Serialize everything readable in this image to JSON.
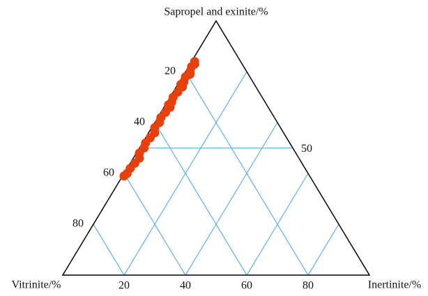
{
  "chart_data": {
    "type": "ternary",
    "top_label": "Sapropel and exinite/%",
    "left_label": "Vitrinite/%",
    "right_label": "Inertinite/%",
    "bottom_ticks": [
      20,
      40,
      60,
      80
    ],
    "left_ticks": [
      20,
      40,
      60,
      80
    ],
    "right_ticks": [
      50
    ],
    "grid": true,
    "grid_color": "#6ab4e8",
    "series": [
      {
        "color": "#e8400c",
        "sapropel": [
          84,
          83,
          82,
          80,
          79,
          78,
          76,
          75,
          74,
          72,
          70,
          68,
          67,
          66,
          64,
          62,
          60,
          58,
          56,
          54,
          52,
          50,
          48,
          46,
          44,
          42,
          40,
          39
        ],
        "inertinite": [
          1,
          1.5,
          1,
          1.5,
          2,
          1,
          1.5,
          1,
          2,
          1.5,
          1,
          1.5,
          1,
          2,
          1.5,
          1,
          1.5,
          1,
          2,
          1.5,
          1,
          1.5,
          1,
          2,
          1.5,
          1,
          1,
          0.5
        ]
      }
    ]
  }
}
